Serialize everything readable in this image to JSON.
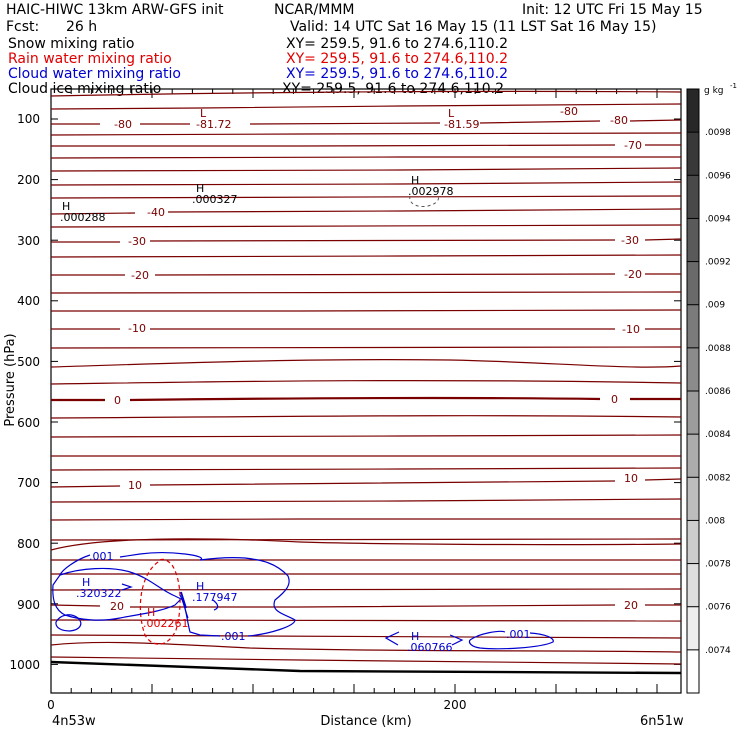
{
  "header": {
    "title": "HAIC-HIWC 13km ARW-GFS init",
    "institution": "NCAR/MMM",
    "init": "Init: 12 UTC Fri 15 May 15",
    "fcst_label": "Fcst:",
    "fcst_value": "26 h",
    "valid": "Valid: 14 UTC Sat 16 May 15 (11 LST Sat 16 May 15)",
    "fields": [
      {
        "name": "Snow mixing ratio",
        "xy": "XY= 259.5, 91.6 to 274.6,110.2",
        "color": "#000000"
      },
      {
        "name": "Rain water mixing ratio",
        "xy": "XY= 259.5, 91.6 to 274.6,110.2",
        "color": "#e00000"
      },
      {
        "name": "Cloud water mixing ratio",
        "xy": "XY= 259.5, 91.6 to 274.6,110.2",
        "color": "#0000d0"
      },
      {
        "name": "Cloud ice mixing ratio",
        "xy": "XY= 259.5, 91.6 to 274.6,110.2",
        "color": "#000000"
      }
    ]
  },
  "chart_data": {
    "type": "contour",
    "ylabel": "Pressure (hPa)",
    "xlabel": "Distance (km)",
    "x_ticks": [
      "0",
      "200"
    ],
    "y_ticks": [
      "100",
      "200",
      "300",
      "400",
      "500",
      "600",
      "700",
      "800",
      "900",
      "1000"
    ],
    "x_start_label": "4n53w",
    "x_end_label": "6n51w",
    "temperature_labels": {
      "left": [
        "-80",
        "-40",
        "-30",
        "-20",
        "-10",
        "0",
        "10",
        "20"
      ],
      "right": [
        "-80",
        "-80",
        "-70",
        "-30",
        "-20",
        "-10",
        "0",
        "10",
        "20"
      ]
    },
    "extrema": [
      {
        "type": "L",
        "value": "-81.72"
      },
      {
        "type": "L",
        "value": "-81.59"
      },
      {
        "type": "H",
        "value": ".000288"
      },
      {
        "type": "H",
        "value": ".000327"
      },
      {
        "type": "H",
        "value": ".002978"
      },
      {
        "type": "H",
        "value": ".320322"
      },
      {
        "type": "H",
        "value": ".177947"
      },
      {
        "type": "H",
        "value": ".002261"
      },
      {
        "type": "H",
        "value": ".060766"
      }
    ],
    "cloud_labels": [
      ".001",
      ".001",
      ".001"
    ],
    "colorbar": {
      "units": "g kg",
      "units_exp": "-1",
      "labels": [
        ".0098",
        ".0096",
        ".0094",
        ".0092",
        ".009",
        ".0088",
        ".0086",
        ".0084",
        ".0082",
        ".008",
        ".0078",
        ".0076",
        ".0074"
      ]
    },
    "colors": {
      "temperature": "#7a0000",
      "rain": "#e00000",
      "cloud": "#0000d0",
      "terrain": "#000000"
    }
  }
}
